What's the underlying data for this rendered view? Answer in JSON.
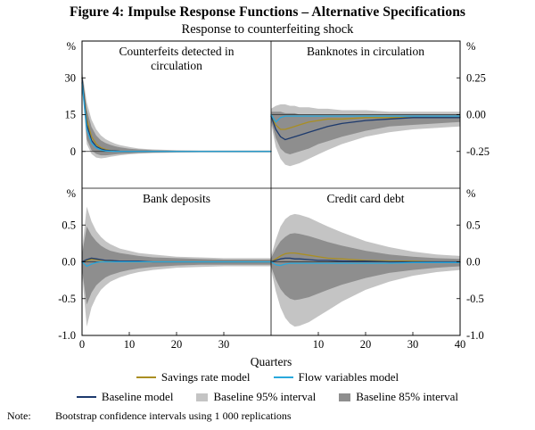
{
  "figure": {
    "title": "Figure 4: Impulse Response Functions – Alternative Specifications",
    "subtitle": "Response to counterfeiting shock",
    "xlabel": "Quarters"
  },
  "colors": {
    "savings": "#aa8e22",
    "flow": "#29a8dc",
    "baseline": "#1d3a6d",
    "band95": "#c4c4c4",
    "band85": "#8e8e8e",
    "axis": "#000000"
  },
  "legend": {
    "items": [
      {
        "label": "Savings rate model",
        "swatch": "line",
        "color_key": "savings"
      },
      {
        "label": "Flow variables model",
        "swatch": "line",
        "color_key": "flow"
      },
      {
        "label": "Baseline model",
        "swatch": "line",
        "color_key": "baseline"
      },
      {
        "label": "Baseline 95% interval",
        "swatch": "box",
        "color_key": "band95"
      },
      {
        "label": "Baseline 85% interval",
        "swatch": "box",
        "color_key": "band85"
      }
    ]
  },
  "note": {
    "label": "Note:",
    "text": "Bootstrap confidence intervals using 1 000 replications"
  },
  "chart_data": [
    {
      "type": "line",
      "title": "Counterfeits detected in circulation",
      "position": "top-left",
      "unit": "%",
      "ylim": [
        -15,
        45
      ],
      "ytick_side": "left",
      "yticks": [
        {
          "v": 30,
          "label": "30"
        },
        {
          "v": 15,
          "label": "15"
        },
        {
          "v": 0,
          "label": "0"
        }
      ],
      "xlim": [
        0,
        40
      ],
      "xticks": [],
      "x": [
        0,
        1,
        2,
        3,
        4,
        5,
        6,
        7,
        8,
        10,
        12,
        15,
        20,
        25,
        30,
        35,
        40
      ],
      "series": [
        {
          "name": "Savings rate model",
          "color_key": "savings",
          "values": [
            30,
            13,
            6,
            3,
            1.5,
            0.8,
            0.4,
            0.2,
            0.1,
            0,
            0,
            0,
            0,
            0,
            0,
            0,
            0
          ]
        },
        {
          "name": "Baseline model",
          "color_key": "baseline",
          "values": [
            30,
            11,
            4.5,
            2,
            1,
            0.5,
            0.3,
            0.2,
            0.1,
            0,
            0,
            0,
            0,
            0,
            0,
            0,
            0
          ]
        },
        {
          "name": "Flow variables model",
          "color_key": "flow",
          "values": [
            28,
            9,
            3.5,
            1.5,
            0.6,
            0.2,
            0.1,
            0,
            0,
            0,
            0,
            0,
            0,
            0,
            0,
            0,
            0
          ]
        }
      ],
      "bands": [
        {
          "name": "Baseline 95% interval",
          "color_key": "band95",
          "upper": [
            33,
            20,
            13,
            9,
            6.5,
            5,
            4,
            3.2,
            2.6,
            1.8,
            1.2,
            0.8,
            0.5,
            0.4,
            0.4,
            0.4,
            0.4
          ],
          "lower": [
            27,
            3,
            -1,
            -2.5,
            -2.8,
            -2.6,
            -2.2,
            -1.9,
            -1.6,
            -1.2,
            -0.9,
            -0.7,
            -0.5,
            -0.4,
            -0.4,
            -0.4,
            -0.4
          ]
        },
        {
          "name": "Baseline 85% interval",
          "color_key": "band85",
          "upper": [
            32,
            17,
            10,
            6.5,
            4.5,
            3.4,
            2.7,
            2.1,
            1.7,
            1.1,
            0.8,
            0.5,
            0.3,
            0.25,
            0.25,
            0.25,
            0.25
          ],
          "lower": [
            28,
            5,
            0.5,
            -1,
            -1.6,
            -1.6,
            -1.4,
            -1.2,
            -1,
            -0.8,
            -0.6,
            -0.45,
            -0.3,
            -0.25,
            -0.25,
            -0.25,
            -0.25
          ]
        }
      ]
    },
    {
      "type": "line",
      "title": "Banknotes in circulation",
      "position": "top-right",
      "unit": "%",
      "ylim": [
        -0.5,
        0.5
      ],
      "ytick_side": "right",
      "yticks": [
        {
          "v": 0.25,
          "label": "0.25"
        },
        {
          "v": 0,
          "label": "0.00"
        },
        {
          "v": -0.25,
          "label": "-0.25"
        }
      ],
      "xlim": [
        0,
        40
      ],
      "xticks": [],
      "x": [
        0,
        1,
        2,
        3,
        4,
        5,
        6,
        8,
        10,
        12,
        15,
        20,
        25,
        30,
        35,
        40
      ],
      "series": [
        {
          "name": "Savings rate model",
          "color_key": "savings",
          "values": [
            -0.01,
            -0.07,
            -0.1,
            -0.1,
            -0.09,
            -0.08,
            -0.07,
            -0.05,
            -0.04,
            -0.03,
            -0.03,
            -0.02,
            -0.02,
            -0.02,
            -0.02,
            -0.02
          ]
        },
        {
          "name": "Baseline model",
          "color_key": "baseline",
          "values": [
            -0.01,
            -0.1,
            -0.15,
            -0.17,
            -0.16,
            -0.15,
            -0.14,
            -0.12,
            -0.1,
            -0.08,
            -0.06,
            -0.04,
            -0.03,
            -0.02,
            -0.02,
            -0.02
          ]
        },
        {
          "name": "Flow variables model",
          "color_key": "flow",
          "values": [
            0,
            -0.05,
            -0.02,
            -0.01,
            -0.01,
            -0.01,
            -0.01,
            -0.01,
            -0.01,
            -0.01,
            -0.01,
            -0.01,
            -0.01,
            -0.01,
            -0.01,
            -0.01
          ]
        }
      ],
      "bands": [
        {
          "name": "Baseline 95% interval",
          "color_key": "band95",
          "upper": [
            0.04,
            0.06,
            0.07,
            0.07,
            0.06,
            0.06,
            0.05,
            0.05,
            0.04,
            0.04,
            0.03,
            0.03,
            0.02,
            0.02,
            0.02,
            0.02
          ],
          "lower": [
            -0.06,
            -0.22,
            -0.3,
            -0.34,
            -0.35,
            -0.34,
            -0.33,
            -0.3,
            -0.27,
            -0.24,
            -0.2,
            -0.15,
            -0.12,
            -0.1,
            -0.09,
            -0.08
          ]
        },
        {
          "name": "Baseline 85% interval",
          "color_key": "band85",
          "upper": [
            0.02,
            0.02,
            0.02,
            0.01,
            0.01,
            0.01,
            0,
            0,
            0,
            0,
            0,
            0,
            0,
            0,
            0,
            0
          ],
          "lower": [
            -0.04,
            -0.16,
            -0.23,
            -0.26,
            -0.27,
            -0.26,
            -0.25,
            -0.23,
            -0.2,
            -0.18,
            -0.15,
            -0.11,
            -0.08,
            -0.07,
            -0.06,
            -0.05
          ]
        }
      ]
    },
    {
      "type": "line",
      "title": "Bank deposits",
      "position": "bottom-left",
      "unit": "%",
      "ylim": [
        -1.0,
        1.0
      ],
      "ytick_side": "left",
      "yticks": [
        {
          "v": 0.5,
          "label": "0.5"
        },
        {
          "v": 0,
          "label": "0.0"
        },
        {
          "v": -0.5,
          "label": "-0.5"
        },
        {
          "v": -1.0,
          "label": "-1.0"
        }
      ],
      "xlim": [
        0,
        40
      ],
      "xticks": [
        0,
        10,
        20,
        30
      ],
      "x": [
        0,
        1,
        2,
        3,
        4,
        5,
        6,
        8,
        10,
        12,
        15,
        20,
        25,
        30,
        35,
        40
      ],
      "series": [
        {
          "name": "Savings rate model",
          "color_key": "savings",
          "values": [
            0,
            0.02,
            0.03,
            0.03,
            0.02,
            0.02,
            0.01,
            0.01,
            0,
            0,
            0,
            0,
            0,
            0,
            0,
            0
          ]
        },
        {
          "name": "Baseline model",
          "color_key": "baseline",
          "values": [
            0,
            0.03,
            0.05,
            0.04,
            0.03,
            0.02,
            0.02,
            0.01,
            0.01,
            0.01,
            0,
            0,
            0,
            0,
            0,
            0
          ]
        },
        {
          "name": "Flow variables model",
          "color_key": "flow",
          "values": [
            0,
            -0.06,
            -0.03,
            -0.01,
            0,
            0,
            0,
            0,
            0,
            0,
            0,
            0,
            0,
            0,
            0,
            0
          ]
        }
      ],
      "bands": [
        {
          "name": "Baseline 95% interval",
          "color_key": "band95",
          "upper": [
            0.15,
            0.75,
            0.55,
            0.42,
            0.34,
            0.28,
            0.24,
            0.18,
            0.15,
            0.12,
            0.1,
            0.07,
            0.06,
            0.05,
            0.05,
            0.05
          ],
          "lower": [
            -0.15,
            -0.88,
            -0.62,
            -0.48,
            -0.38,
            -0.32,
            -0.27,
            -0.21,
            -0.17,
            -0.14,
            -0.11,
            -0.08,
            -0.07,
            -0.06,
            -0.06,
            -0.06
          ]
        },
        {
          "name": "Baseline 85% interval",
          "color_key": "band85",
          "upper": [
            0.1,
            0.48,
            0.36,
            0.28,
            0.22,
            0.18,
            0.15,
            0.12,
            0.1,
            0.08,
            0.06,
            0.05,
            0.04,
            0.03,
            0.03,
            0.03
          ],
          "lower": [
            -0.1,
            -0.58,
            -0.42,
            -0.32,
            -0.26,
            -0.21,
            -0.18,
            -0.14,
            -0.11,
            -0.09,
            -0.07,
            -0.05,
            -0.04,
            -0.04,
            -0.04,
            -0.04
          ]
        }
      ]
    },
    {
      "type": "line",
      "title": "Credit card debt",
      "position": "bottom-right",
      "unit": "%",
      "ylim": [
        -1.0,
        1.0
      ],
      "ytick_side": "right",
      "yticks": [
        {
          "v": 0.5,
          "label": "0.5"
        },
        {
          "v": 0,
          "label": "0.0"
        },
        {
          "v": -0.5,
          "label": "-0.5"
        },
        {
          "v": -1.0,
          "label": "-1.0"
        }
      ],
      "xlim": [
        0,
        40
      ],
      "xticks": [
        10,
        20,
        30,
        40
      ],
      "x": [
        0,
        1,
        2,
        3,
        4,
        5,
        6,
        8,
        10,
        12,
        15,
        20,
        25,
        30,
        35,
        40
      ],
      "series": [
        {
          "name": "Savings rate model",
          "color_key": "savings",
          "values": [
            0,
            0.04,
            0.08,
            0.11,
            0.12,
            0.12,
            0.11,
            0.09,
            0.07,
            0.05,
            0.04,
            0.02,
            0.01,
            0.01,
            0,
            0
          ]
        },
        {
          "name": "Baseline model",
          "color_key": "baseline",
          "values": [
            0,
            0.02,
            0.04,
            0.05,
            0.05,
            0.04,
            0.04,
            0.03,
            0.02,
            0.02,
            0.01,
            0.01,
            0,
            0,
            0,
            0
          ]
        },
        {
          "name": "Flow variables model",
          "color_key": "flow",
          "values": [
            0,
            -0.04,
            -0.05,
            -0.03,
            -0.02,
            -0.02,
            -0.02,
            -0.02,
            -0.02,
            -0.02,
            -0.02,
            -0.02,
            -0.02,
            -0.01,
            -0.01,
            -0.01
          ]
        }
      ],
      "bands": [
        {
          "name": "Baseline 95% interval",
          "color_key": "band95",
          "upper": [
            0.08,
            0.3,
            0.48,
            0.58,
            0.63,
            0.65,
            0.64,
            0.6,
            0.54,
            0.48,
            0.4,
            0.28,
            0.2,
            0.14,
            0.1,
            0.08
          ],
          "lower": [
            -0.1,
            -0.4,
            -0.62,
            -0.76,
            -0.84,
            -0.88,
            -0.87,
            -0.82,
            -0.74,
            -0.66,
            -0.54,
            -0.38,
            -0.27,
            -0.19,
            -0.14,
            -0.11
          ]
        },
        {
          "name": "Baseline 85% interval",
          "color_key": "band85",
          "upper": [
            0.05,
            0.18,
            0.28,
            0.34,
            0.38,
            0.39,
            0.38,
            0.35,
            0.31,
            0.27,
            0.22,
            0.15,
            0.1,
            0.07,
            0.05,
            0.04
          ],
          "lower": [
            -0.06,
            -0.24,
            -0.37,
            -0.45,
            -0.5,
            -0.52,
            -0.51,
            -0.48,
            -0.43,
            -0.38,
            -0.31,
            -0.22,
            -0.15,
            -0.11,
            -0.08,
            -0.06
          ]
        }
      ]
    }
  ]
}
